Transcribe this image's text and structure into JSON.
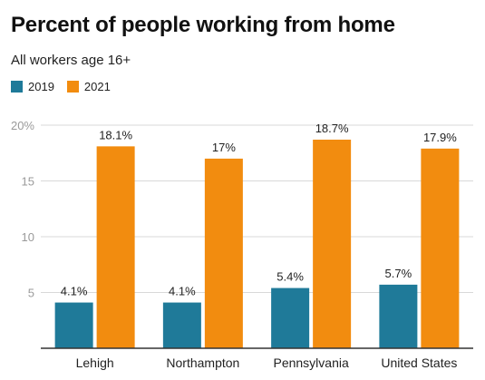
{
  "chart_data": {
    "type": "bar",
    "title": "Percent of people working from home",
    "subtitle": "All workers age 16+",
    "categories": [
      "Lehigh",
      "Northampton",
      "Pennsylvania",
      "United States"
    ],
    "series": [
      {
        "name": "2019",
        "values": [
          4.1,
          4.1,
          5.4,
          5.7
        ],
        "labels": [
          "4.1%",
          "4.1%",
          "5.4%",
          "5.7%"
        ],
        "color": "#1f7a99"
      },
      {
        "name": "2021",
        "values": [
          18.1,
          17,
          18.7,
          17.9
        ],
        "labels": [
          "18.1%",
          "17%",
          "18.7%",
          "17.9%"
        ],
        "color": "#f28c0f"
      }
    ],
    "ylim": [
      0,
      20
    ],
    "yticks": [
      5,
      10,
      15,
      20
    ],
    "ytick_labels": [
      "5",
      "10",
      "15",
      "20%"
    ],
    "grid": true,
    "legend": "top-left"
  }
}
